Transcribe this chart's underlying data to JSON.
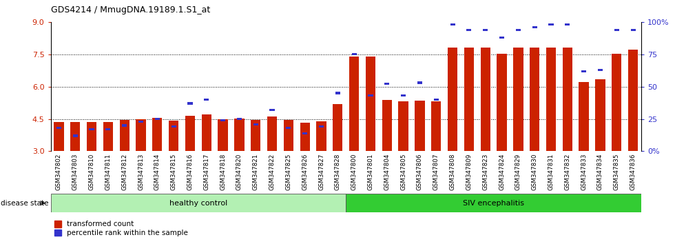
{
  "title": "GDS4214 / MmugDNA.19189.1.S1_at",
  "samples": [
    "GSM347802",
    "GSM347803",
    "GSM347810",
    "GSM347811",
    "GSM347812",
    "GSM347813",
    "GSM347814",
    "GSM347815",
    "GSM347816",
    "GSM347817",
    "GSM347818",
    "GSM347820",
    "GSM347821",
    "GSM347822",
    "GSM347825",
    "GSM347826",
    "GSM347827",
    "GSM347828",
    "GSM347800",
    "GSM347801",
    "GSM347804",
    "GSM347805",
    "GSM347806",
    "GSM347807",
    "GSM347808",
    "GSM347809",
    "GSM347823",
    "GSM347824",
    "GSM347829",
    "GSM347830",
    "GSM347831",
    "GSM347832",
    "GSM347833",
    "GSM347834",
    "GSM347835",
    "GSM347836"
  ],
  "red_values": [
    4.35,
    4.35,
    4.35,
    4.35,
    4.45,
    4.5,
    4.55,
    4.42,
    4.65,
    4.72,
    4.5,
    4.52,
    4.47,
    4.62,
    4.47,
    4.32,
    4.38,
    5.2,
    7.4,
    7.4,
    5.38,
    5.32,
    5.35,
    5.32,
    7.82,
    7.82,
    7.82,
    7.52,
    7.82,
    7.82,
    7.82,
    7.82,
    6.2,
    6.35,
    7.52,
    7.72
  ],
  "blue_values_pct": [
    18,
    12,
    17,
    17,
    20,
    23,
    25,
    19,
    37,
    40,
    24,
    25,
    21,
    32,
    18,
    14,
    19,
    45,
    75,
    43,
    52,
    43,
    53,
    40,
    98,
    94,
    94,
    88,
    94,
    96,
    98,
    98,
    62,
    63,
    94,
    94
  ],
  "groups": [
    {
      "label": "healthy control",
      "start": 0,
      "end": 18,
      "color": "#b3f0b3"
    },
    {
      "label": "SIV encephalitis",
      "start": 18,
      "end": 36,
      "color": "#33cc33"
    }
  ],
  "ymin": 3.0,
  "ymax": 9.0,
  "yticks_left": [
    3.0,
    4.5,
    6.0,
    7.5,
    9.0
  ],
  "yticks_right_pct": [
    0,
    25,
    50,
    75,
    100
  ],
  "yticks_right_labels": [
    "0%",
    "25",
    "50",
    "75",
    "100%"
  ],
  "bar_color": "#cc2200",
  "dot_color": "#3333cc",
  "grid_ticks": [
    4.5,
    6.0,
    7.5
  ],
  "disease_state_label": "disease state"
}
